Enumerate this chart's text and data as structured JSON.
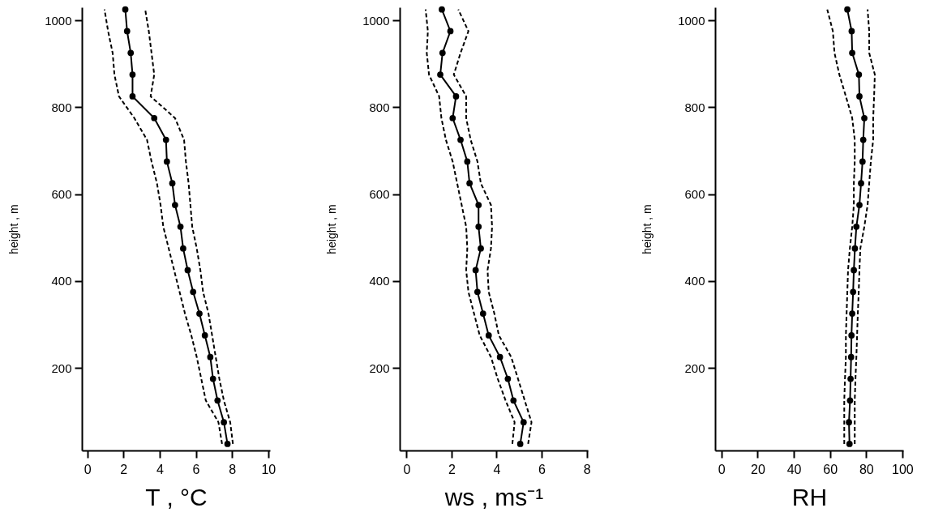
{
  "chart_data": [
    {
      "type": "line",
      "xlabel": "T  ,  °C",
      "ylabel": "height  ,  m",
      "xlim": [
        -0.3,
        10.1
      ],
      "xticks": [
        0,
        2,
        4,
        6,
        8,
        10
      ],
      "ylim": [
        10,
        1030
      ],
      "yticks": [
        200,
        400,
        600,
        800,
        1000
      ],
      "series": [
        {
          "color": "#000000",
          "marker": "circle",
          "line_style": "solid",
          "x": [
            7.75,
            7.55,
            7.2,
            6.95,
            6.8,
            6.5,
            6.2,
            5.85,
            5.55,
            5.3,
            5.15,
            4.85,
            4.7,
            4.4,
            4.35,
            3.7,
            2.5,
            2.5,
            2.4,
            2.2,
            2.1
          ],
          "values": [
            25,
            75,
            125,
            175,
            225,
            275,
            325,
            375,
            425,
            475,
            525,
            575,
            625,
            675,
            725,
            775,
            825,
            875,
            925,
            975,
            1025
          ]
        },
        {
          "color": "#000000",
          "marker": "none",
          "line_style": "dashed",
          "x": [
            7.45,
            7.25,
            6.55,
            6.3,
            6.05,
            5.75,
            5.4,
            5.1,
            4.8,
            4.5,
            4.2,
            4.05,
            3.85,
            3.55,
            3.3,
            2.6,
            1.75,
            1.5,
            1.4,
            1.15,
            0.95
          ],
          "values": [
            25,
            75,
            125,
            175,
            225,
            275,
            325,
            375,
            425,
            475,
            525,
            575,
            625,
            675,
            725,
            775,
            825,
            875,
            925,
            975,
            1025
          ]
        },
        {
          "color": "#000000",
          "marker": "none",
          "line_style": "dashed",
          "x": [
            8.05,
            7.9,
            7.55,
            7.3,
            7.1,
            6.9,
            6.7,
            6.4,
            6.25,
            6.05,
            5.8,
            5.7,
            5.6,
            5.45,
            5.35,
            4.85,
            3.5,
            3.7,
            3.55,
            3.4,
            3.2
          ],
          "values": [
            25,
            75,
            125,
            175,
            225,
            275,
            325,
            375,
            425,
            475,
            525,
            575,
            625,
            675,
            725,
            775,
            825,
            875,
            925,
            975,
            1025
          ]
        }
      ]
    },
    {
      "type": "line",
      "xlabel": "ws  ,  ms⁻¹",
      "ylabel": "height  ,  m",
      "xlim": [
        -0.3,
        8.05
      ],
      "xticks": [
        0,
        2,
        4,
        6,
        8
      ],
      "ylim": [
        10,
        1030
      ],
      "yticks": [
        200,
        400,
        600,
        800,
        1000
      ],
      "series": [
        {
          "color": "#000000",
          "marker": "circle",
          "line_style": "solid",
          "x": [
            5.05,
            5.2,
            4.75,
            4.5,
            4.15,
            3.65,
            3.4,
            3.15,
            3.07,
            3.3,
            3.2,
            3.2,
            2.8,
            2.7,
            2.4,
            2.05,
            2.2,
            1.5,
            1.6,
            1.95,
            1.57
          ],
          "values": [
            25,
            75,
            125,
            175,
            225,
            275,
            325,
            375,
            425,
            475,
            525,
            575,
            625,
            675,
            725,
            775,
            825,
            875,
            925,
            975,
            1025
          ]
        },
        {
          "color": "#000000",
          "marker": "none",
          "line_style": "dashed",
          "x": [
            4.7,
            4.8,
            4.4,
            4.05,
            3.75,
            3.25,
            3.0,
            2.75,
            2.65,
            2.7,
            2.65,
            2.45,
            2.25,
            2.05,
            1.75,
            1.55,
            1.45,
            1.0,
            0.9,
            0.95,
            0.85
          ],
          "values": [
            25,
            75,
            125,
            175,
            225,
            275,
            325,
            375,
            425,
            475,
            525,
            575,
            625,
            675,
            725,
            775,
            825,
            875,
            925,
            975,
            1025
          ]
        },
        {
          "color": "#000000",
          "marker": "none",
          "line_style": "dashed",
          "x": [
            5.4,
            5.55,
            5.25,
            4.95,
            4.65,
            4.1,
            3.9,
            3.65,
            3.6,
            3.75,
            3.8,
            3.75,
            3.3,
            3.15,
            2.85,
            2.65,
            2.65,
            2.1,
            2.4,
            2.75,
            2.3
          ],
          "values": [
            25,
            75,
            125,
            175,
            225,
            275,
            325,
            375,
            425,
            475,
            525,
            575,
            625,
            675,
            725,
            775,
            825,
            875,
            925,
            975,
            1025
          ]
        }
      ]
    },
    {
      "type": "line",
      "xlabel": "RH",
      "ylabel": "height  ,  m",
      "xlim": [
        -3.5,
        100.5
      ],
      "xticks": [
        0,
        20,
        40,
        60,
        80,
        100
      ],
      "ylim": [
        10,
        1030
      ],
      "yticks": [
        200,
        400,
        600,
        800,
        1000
      ],
      "series": [
        {
          "color": "#000000",
          "marker": "circle",
          "line_style": "solid",
          "x": [
            70.8,
            70.5,
            71.1,
            71.4,
            71.7,
            71.9,
            72.3,
            72.8,
            73.2,
            73.8,
            74.6,
            76.3,
            77.2,
            78,
            78.4,
            79,
            76.3,
            76,
            72.3,
            72,
            69.6
          ],
          "values": [
            25,
            75,
            125,
            175,
            225,
            275,
            325,
            375,
            425,
            475,
            525,
            575,
            625,
            675,
            725,
            775,
            825,
            875,
            925,
            975,
            1025
          ]
        },
        {
          "color": "#000000",
          "marker": "none",
          "line_style": "dashed",
          "x": [
            67.9,
            67.9,
            67.9,
            68.3,
            68.8,
            68.8,
            69.2,
            69.6,
            70,
            71,
            72.3,
            73.2,
            73.2,
            73.7,
            73.7,
            72.3,
            68.8,
            65.2,
            62.5,
            61.6,
            58.5
          ],
          "values": [
            25,
            75,
            125,
            175,
            225,
            275,
            325,
            375,
            425,
            475,
            525,
            575,
            625,
            675,
            725,
            775,
            825,
            875,
            925,
            975,
            1025
          ]
        },
        {
          "color": "#000000",
          "marker": "none",
          "line_style": "dashed",
          "x": [
            73.7,
            73.7,
            73.7,
            74.1,
            74.6,
            75,
            75.4,
            75.9,
            76.3,
            76.8,
            79,
            80.8,
            81.7,
            82.6,
            83.9,
            83.9,
            84.4,
            84.8,
            81.7,
            81.7,
            80.8
          ],
          "values": [
            25,
            75,
            125,
            175,
            225,
            275,
            325,
            375,
            425,
            475,
            525,
            575,
            625,
            675,
            725,
            775,
            825,
            875,
            925,
            975,
            1025
          ]
        }
      ]
    }
  ]
}
